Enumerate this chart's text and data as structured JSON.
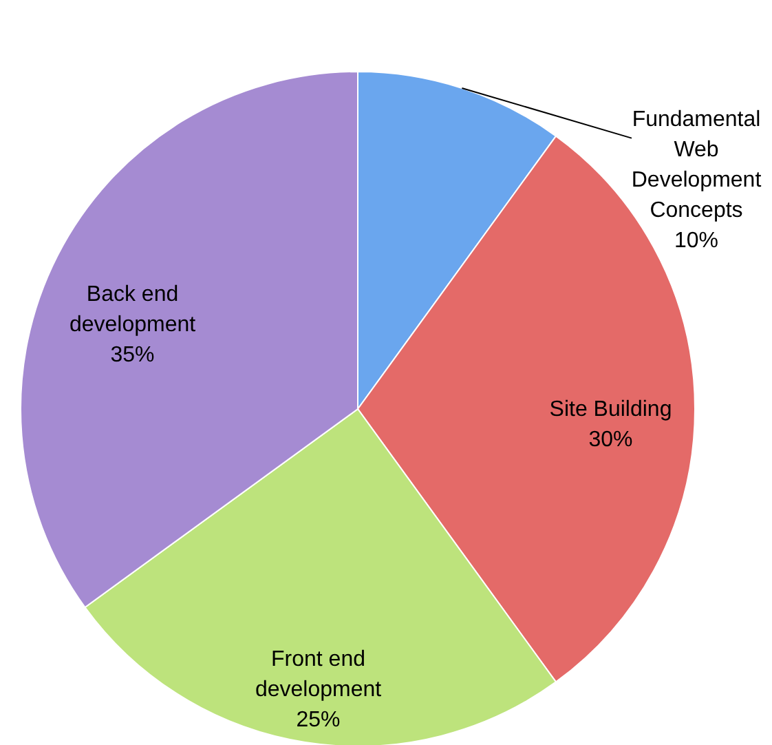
{
  "chart_data": {
    "type": "pie",
    "categories": [
      "Fundamental Web Development Concepts",
      "Site Building",
      "Front end development",
      "Back end development"
    ],
    "values": [
      10,
      30,
      25,
      35
    ],
    "colors": [
      "#6aa6ee",
      "#e46a68",
      "#bde37c",
      "#a58bd2"
    ],
    "value_labels": [
      "10%",
      "30%",
      "25%",
      "35%"
    ]
  }
}
